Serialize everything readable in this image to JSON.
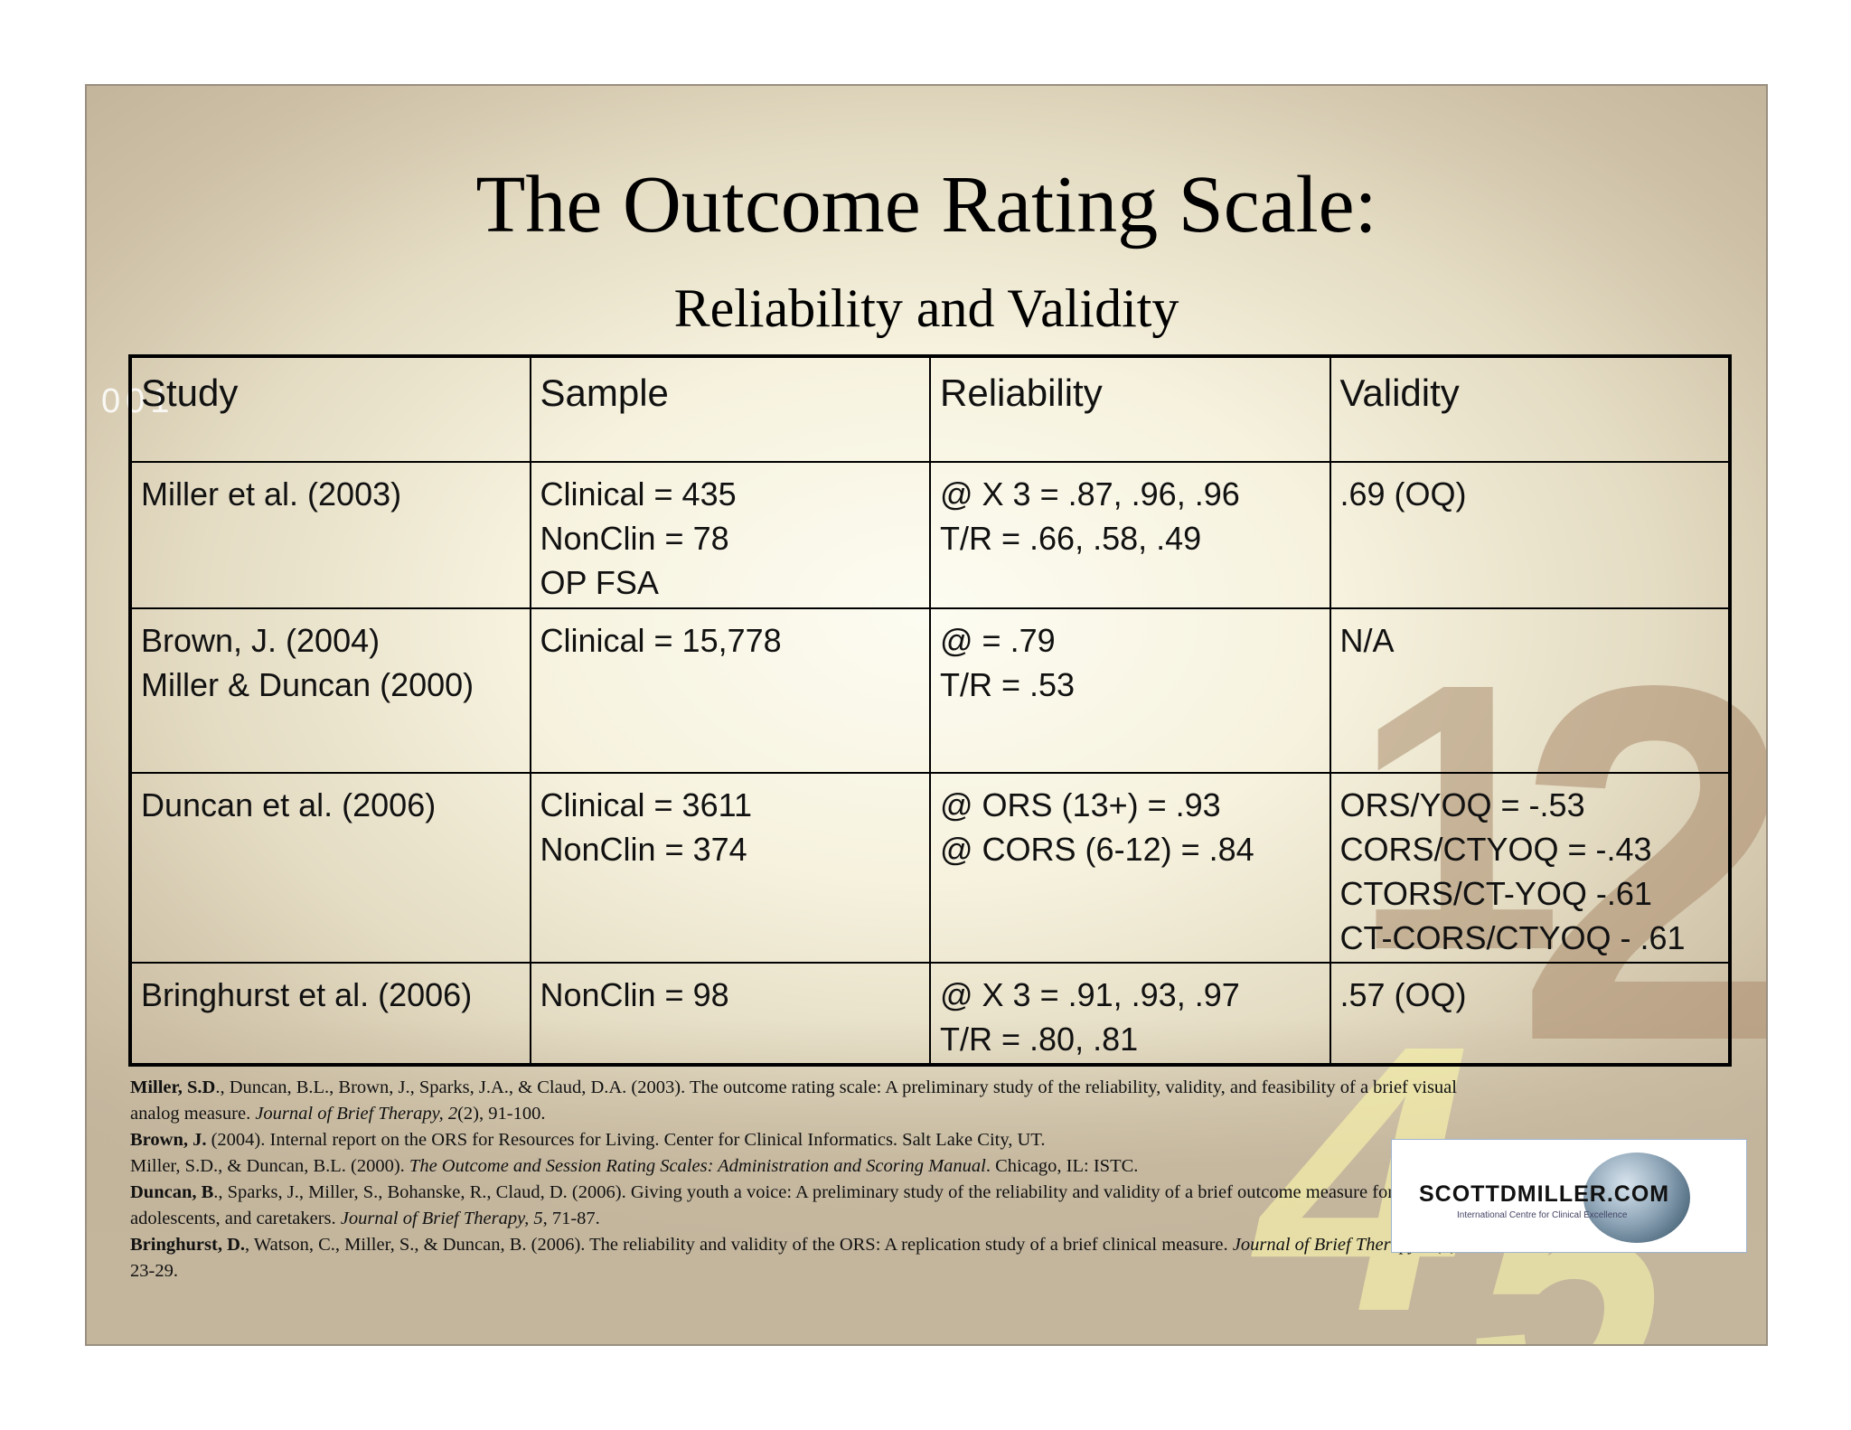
{
  "slide": {
    "title": "The Outcome Rating Scale:",
    "subtitle": "Reliability and Validity",
    "decoration": {
      "corner_number": "001",
      "big_numerals": [
        "1",
        "2",
        "4",
        "5"
      ]
    }
  },
  "table": {
    "headers": [
      "Study",
      "Sample",
      "Reliability",
      "Validity"
    ],
    "rows": [
      {
        "study": [
          "Miller et al. (2003)"
        ],
        "sample": [
          "Clinical = 435",
          "NonClin = 78",
          "OP FSA"
        ],
        "reliability": [
          "@ X 3 = .87, .96, .96",
          "T/R = .66, .58, .49"
        ],
        "validity": [
          ".69 (OQ)"
        ]
      },
      {
        "study": [
          "Brown, J. (2004)",
          "Miller & Duncan (2000)"
        ],
        "sample": [
          "Clinical = 15,778"
        ],
        "reliability": [
          "@ = .79",
          "T/R = .53"
        ],
        "validity": [
          "N/A"
        ]
      },
      {
        "study": [
          "Duncan et al. (2006)"
        ],
        "sample": [
          "Clinical = 3611",
          "NonClin = 374"
        ],
        "reliability": [
          "@ ORS (13+) = .93",
          "@ CORS (6-12) = .84"
        ],
        "validity": [
          "ORS/YOQ = -.53",
          "CORS/CTYOQ = -.43",
          "CTORS/CT-YOQ -.61",
          "CT-CORS/CTYOQ - .61"
        ]
      },
      {
        "study": [
          "Bringhurst et al. (2006)"
        ],
        "sample": [
          "NonClin = 98"
        ],
        "reliability": [
          "@ X 3 = .91, .93, .97",
          "T/R = .80, .81"
        ],
        "validity": [
          ".57 (OQ)"
        ]
      }
    ]
  },
  "references": [
    {
      "author": "Miller, S.D",
      "text": "., Duncan, B.L., Brown, J., Sparks, J.A., & Claud, D.A. (2003).  The outcome rating scale: A preliminary study of the reliability, validity, and feasibility of a brief visual analog measure.  ",
      "journal": "Journal of Brief Therapy, 2",
      "tail": "(2), 91-100."
    },
    {
      "author": "Brown, J.",
      "text": " (2004).  Internal report on the ORS for Resources for Living.  Center for Clinical Informatics.  Salt Lake City, UT.",
      "journal": "",
      "tail": ""
    },
    {
      "author": "",
      "text": "Miller, S.D., & Duncan, B.L. (2000).  ",
      "journal": "The Outcome and Session Rating Scales: Administration and Scoring Manual",
      "tail": ".  Chicago, IL: ISTC."
    },
    {
      "author": "Duncan, B",
      "text": "., Sparks, J., Miller, S., Bohanske, R., Claud, D. (2006).  Giving youth a voice: A preliminary study of the reliability and validity of a brief outcome measure for children, adolescents, and caretakers.  ",
      "journal": "Journal of Brief Therapy, 5",
      "tail": ", 71-87."
    },
    {
      "author": "Bringhurst, D.",
      "text": ", Watson, C., Miller, S., & Duncan, B. (2006).  The reliability and validity of the ORS: A replication study of a brief clinical measure.  ",
      "journal": "Journal of Brief Therapy, 5",
      "tail": "(1), 23-29."
    }
  ],
  "logo": {
    "text": "SCOTTDMILLER.COM",
    "subtext": "International Centre for Clinical Excellence"
  },
  "colors": {
    "background_center": "#fdfcf2",
    "background_edge": "#c3b59c",
    "numeral_brown": "#af9173",
    "numeral_yellow": "#f5f0aa"
  }
}
